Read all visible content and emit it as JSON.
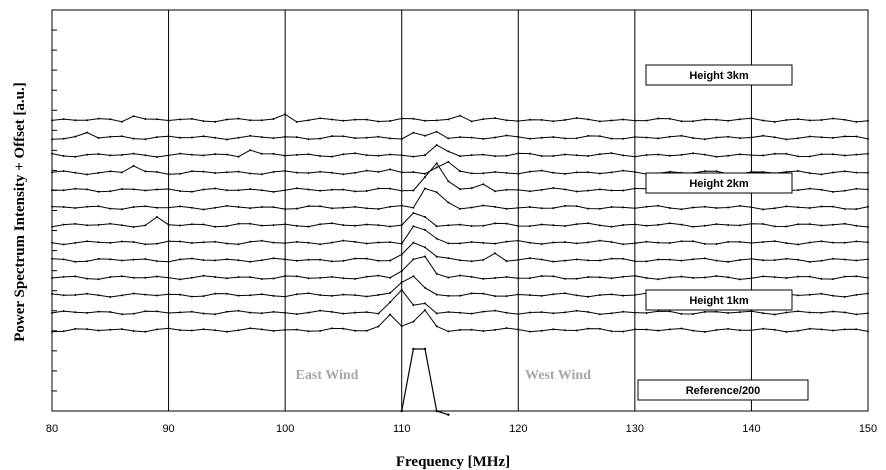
{
  "chart_data": {
    "type": "line",
    "title": "",
    "xlabel": "Frequency [MHz]",
    "ylabel": "Power Spectrum Intensity + Offset [a.u.]",
    "xlim": [
      80,
      150
    ],
    "xticks": [
      80,
      90,
      100,
      110,
      120,
      130,
      140,
      150
    ],
    "grid": "vertical",
    "legend": "none",
    "annotations": {
      "east_wind": "East Wind",
      "west_wind": "West Wind",
      "height_3km": "Height 3km",
      "height_2km": "Height 2km",
      "height_1km": "Height 1km",
      "reference": "Reference/200"
    },
    "x": [
      80,
      81,
      82,
      83,
      84,
      85,
      86,
      87,
      88,
      89,
      90,
      91,
      92,
      93,
      94,
      95,
      96,
      97,
      98,
      99,
      100,
      101,
      102,
      103,
      104,
      105,
      106,
      107,
      108,
      109,
      110,
      111,
      112,
      113,
      114,
      115,
      116,
      117,
      118,
      119,
      120,
      121,
      122,
      123,
      124,
      125,
      126,
      127,
      128,
      129,
      130,
      131,
      132,
      133,
      134,
      135,
      136,
      137,
      138,
      139,
      140,
      141,
      142,
      143,
      144,
      145,
      146,
      147,
      148,
      149,
      150
    ],
    "reference": {
      "points": [
        [
          110,
          0
        ],
        [
          111,
          50
        ],
        [
          112,
          50
        ],
        [
          113,
          0
        ],
        [
          114,
          -3
        ]
      ]
    },
    "series": [
      {
        "peaks": [
          [
            108,
            0.6
          ],
          [
            109,
            3.2
          ],
          [
            110,
            1.0
          ],
          [
            111,
            1.5
          ],
          [
            112,
            3.6
          ],
          [
            113,
            0.8
          ]
        ]
      },
      {
        "peaks": [
          [
            109,
            2.2
          ],
          [
            110,
            4.2
          ],
          [
            111,
            1.2
          ],
          [
            112,
            2.0
          ]
        ]
      },
      {
        "peaks": [
          [
            110,
            2.4
          ],
          [
            111,
            4.0
          ],
          [
            112,
            1.5
          ]
        ]
      },
      {
        "peaks": [
          [
            110,
            1.5
          ],
          [
            111,
            3.6
          ],
          [
            112,
            4.2
          ],
          [
            113,
            1.0
          ]
        ]
      },
      {
        "peaks": [
          [
            110,
            1.0
          ],
          [
            111,
            3.6
          ],
          [
            112,
            2.8
          ],
          [
            113,
            0.5
          ],
          [
            118,
            1.3
          ]
        ]
      },
      {
        "peaks": [
          [
            111,
            3.4
          ],
          [
            112,
            2.2
          ],
          [
            113,
            0.5
          ]
        ]
      },
      {
        "peaks": [
          [
            89,
            1.3
          ],
          [
            111,
            2.0
          ],
          [
            112,
            1.5
          ]
        ]
      },
      {
        "peaks": [
          [
            112,
            4.0
          ],
          [
            113,
            3.0
          ],
          [
            114,
            1.0
          ]
        ]
      },
      {
        "peaks": [
          [
            112,
            2.5
          ],
          [
            113,
            5.5
          ],
          [
            114,
            2.0
          ],
          [
            117,
            1.2
          ]
        ]
      },
      {
        "peaks": [
          [
            87,
            1.4
          ],
          [
            109,
            0.8
          ],
          [
            113,
            1.2
          ],
          [
            114,
            1.8
          ]
        ]
      },
      {
        "peaks": [
          [
            97,
            1.2
          ],
          [
            113,
            1.6
          ],
          [
            114,
            0.6
          ]
        ]
      },
      {
        "peaks": [
          [
            83,
            0.9
          ],
          [
            111,
            0.8
          ],
          [
            113,
            1.2
          ]
        ]
      },
      {
        "peaks": [
          [
            87,
            1.0
          ],
          [
            100,
            1.2
          ],
          [
            115,
            1.0
          ]
        ]
      }
    ]
  }
}
